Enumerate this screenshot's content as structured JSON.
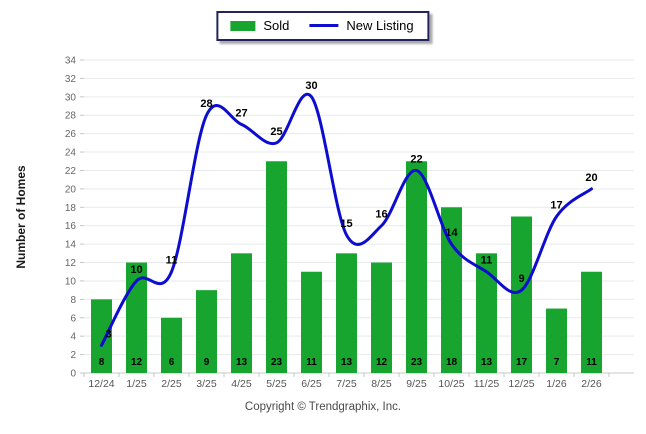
{
  "chart_data": {
    "type": "bar",
    "combo": "bar + smoothed line",
    "categories": [
      "12/24",
      "1/25",
      "2/25",
      "3/25",
      "4/25",
      "5/25",
      "6/25",
      "7/25",
      "8/25",
      "9/25",
      "10/25",
      "11/25",
      "12/25",
      "1/26",
      "2/26"
    ],
    "series": [
      {
        "name": "Sold",
        "kind": "bar",
        "color": "#17a42f",
        "values": [
          8,
          12,
          6,
          9,
          13,
          23,
          11,
          13,
          12,
          23,
          18,
          13,
          17,
          7,
          11
        ]
      },
      {
        "name": "New Listing",
        "kind": "line",
        "color": "#0d0dd0",
        "values": [
          3,
          10,
          11,
          28,
          27,
          25,
          30,
          15,
          16,
          22,
          14,
          11,
          9,
          17,
          20
        ]
      }
    ],
    "title": "",
    "xlabel": "",
    "ylabel": "Number of Homes",
    "ylim": [
      0,
      34
    ],
    "ytick_step": 2,
    "grid": true,
    "legend_position": "top-center",
    "value_labels": {
      "bar": "inside-bottom",
      "line": "above-point"
    },
    "colors": {
      "grid_line": "#e7e9ec",
      "axis_line": "#c9c9c9",
      "tick_mark": "#c5c5c5",
      "ytick_text": "#666666",
      "xtick_text": "#555555"
    }
  },
  "footer": {
    "text": "Copyright © Trendgraphix, Inc."
  }
}
